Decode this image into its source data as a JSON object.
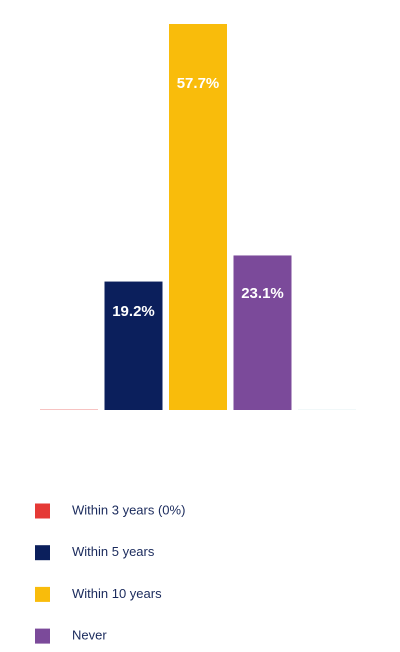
{
  "chart_data": {
    "type": "bar",
    "categories": [
      "Within 3 years (0%)",
      "Within 5 years",
      "Within 10 years",
      "Never",
      null
    ],
    "values": [
      0,
      19.2,
      57.7,
      23.1,
      0
    ],
    "value_labels": [
      null,
      "19.2%",
      "57.7%",
      "23.1%",
      null
    ],
    "colors": [
      "#e53935",
      "#0b1f5c",
      "#f9bc0b",
      "#7b4a9a",
      "#cfe8ea"
    ]
  }
}
